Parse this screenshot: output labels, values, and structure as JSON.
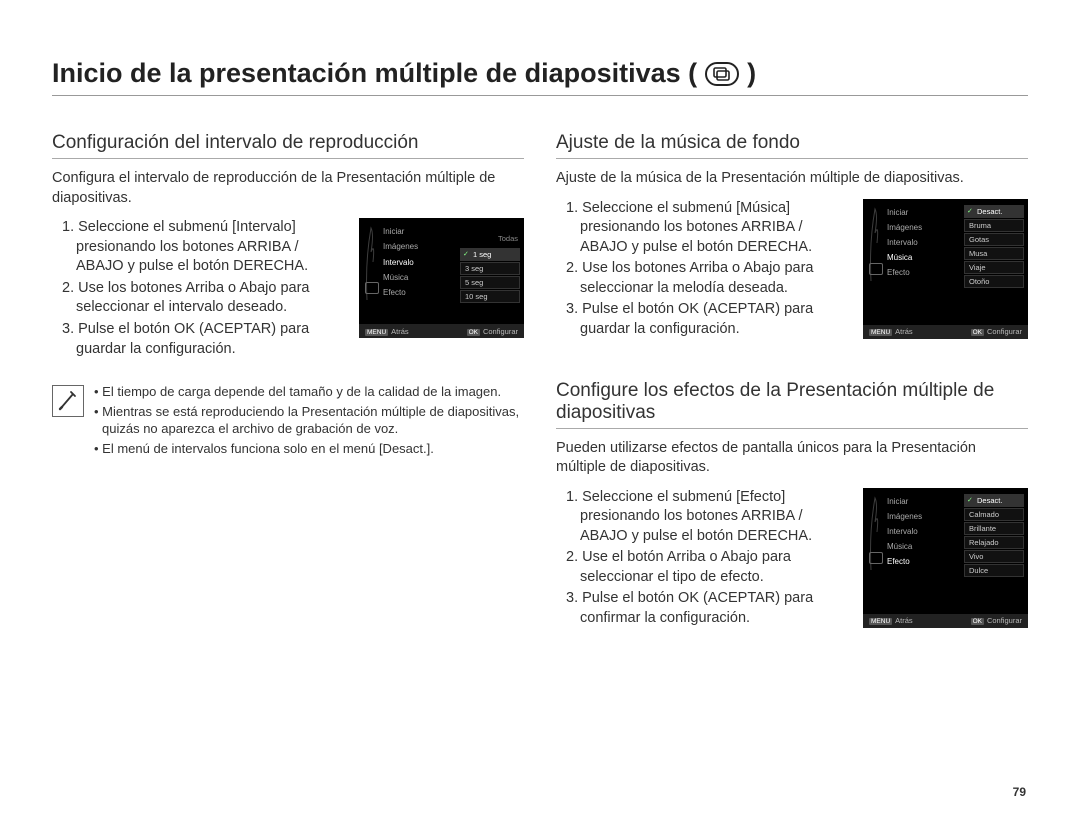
{
  "page_number": "79",
  "title_prefix": "Inicio de la presentación múltiple de diapositivas (",
  "title_suffix": ")",
  "left": {
    "section1": {
      "heading": "Configuración del intervalo de reproducción",
      "intro": "Configura el intervalo de reproducción de la Presentación múltiple de diapositivas.",
      "steps": [
        "1. Seleccione el submenú [Intervalo] presionando los botones ARRIBA / ABAJO y pulse el botón DERECHA.",
        "2. Use los botones Arriba o Abajo para seleccionar el intervalo deseado.",
        "3. Pulse el botón OK (ACEPTAR) para guardar la configuración."
      ],
      "lcd": {
        "menu_left": [
          "Iniciar",
          "Imágenes",
          "Intervalo",
          "Música",
          "Efecto"
        ],
        "highlight_index": 2,
        "right_label": "Todas",
        "options": [
          "1 seg",
          "3 seg",
          "5 seg",
          "10 seg"
        ],
        "selected_index": 0,
        "footer_left_key": "MENU",
        "footer_left": "Atrás",
        "footer_right_key": "OK",
        "footer_right": "Configurar"
      }
    },
    "notes": [
      "El tiempo de carga depende del tamaño y de la calidad de la imagen.",
      "Mientras se está reproduciendo la Presentación múltiple de diapositivas, quizás no aparezca el archivo de grabación de voz.",
      "El menú de intervalos funciona solo en el menú [Desact.]."
    ]
  },
  "right": {
    "section1": {
      "heading": "Ajuste de la música de fondo",
      "intro": "Ajuste de la música de la Presentación múltiple de diapositivas.",
      "steps": [
        "1. Seleccione el submenú [Música] presionando los botones ARRIBA / ABAJO y pulse el botón DERECHA.",
        "2. Use los botones Arriba o Abajo para seleccionar la melodía deseada.",
        "3. Pulse el botón OK (ACEPTAR) para guardar la configuración."
      ],
      "lcd": {
        "menu_left": [
          "Iniciar",
          "Imágenes",
          "Intervalo",
          "Música",
          "Efecto"
        ],
        "highlight_index": 3,
        "options": [
          "Desact.",
          "Bruma",
          "Gotas",
          "Musa",
          "Viaje",
          "Otoño"
        ],
        "selected_index": 0,
        "footer_left_key": "MENU",
        "footer_left": "Atrás",
        "footer_right_key": "OK",
        "footer_right": "Configurar"
      }
    },
    "section2": {
      "heading": "Configure los efectos de la Presentación múltiple de diapositivas",
      "intro": "Pueden utilizarse efectos de pantalla únicos para la Presentación múltiple de diapositivas.",
      "steps": [
        "1. Seleccione el submenú [Efecto] presionando los botones ARRIBA / ABAJO y pulse el botón DERECHA.",
        "2. Use el botón Arriba o Abajo para seleccionar el tipo de efecto.",
        "3. Pulse el botón OK (ACEPTAR) para confirmar la configuración."
      ],
      "lcd": {
        "menu_left": [
          "Iniciar",
          "Imágenes",
          "Intervalo",
          "Música",
          "Efecto"
        ],
        "highlight_index": 4,
        "options": [
          "Desact.",
          "Calmado",
          "Brillante",
          "Relajado",
          "Vivo",
          "Dulce"
        ],
        "selected_index": 0,
        "footer_left_key": "MENU",
        "footer_left": "Atrás",
        "footer_right_key": "OK",
        "footer_right": "Configurar"
      }
    }
  }
}
